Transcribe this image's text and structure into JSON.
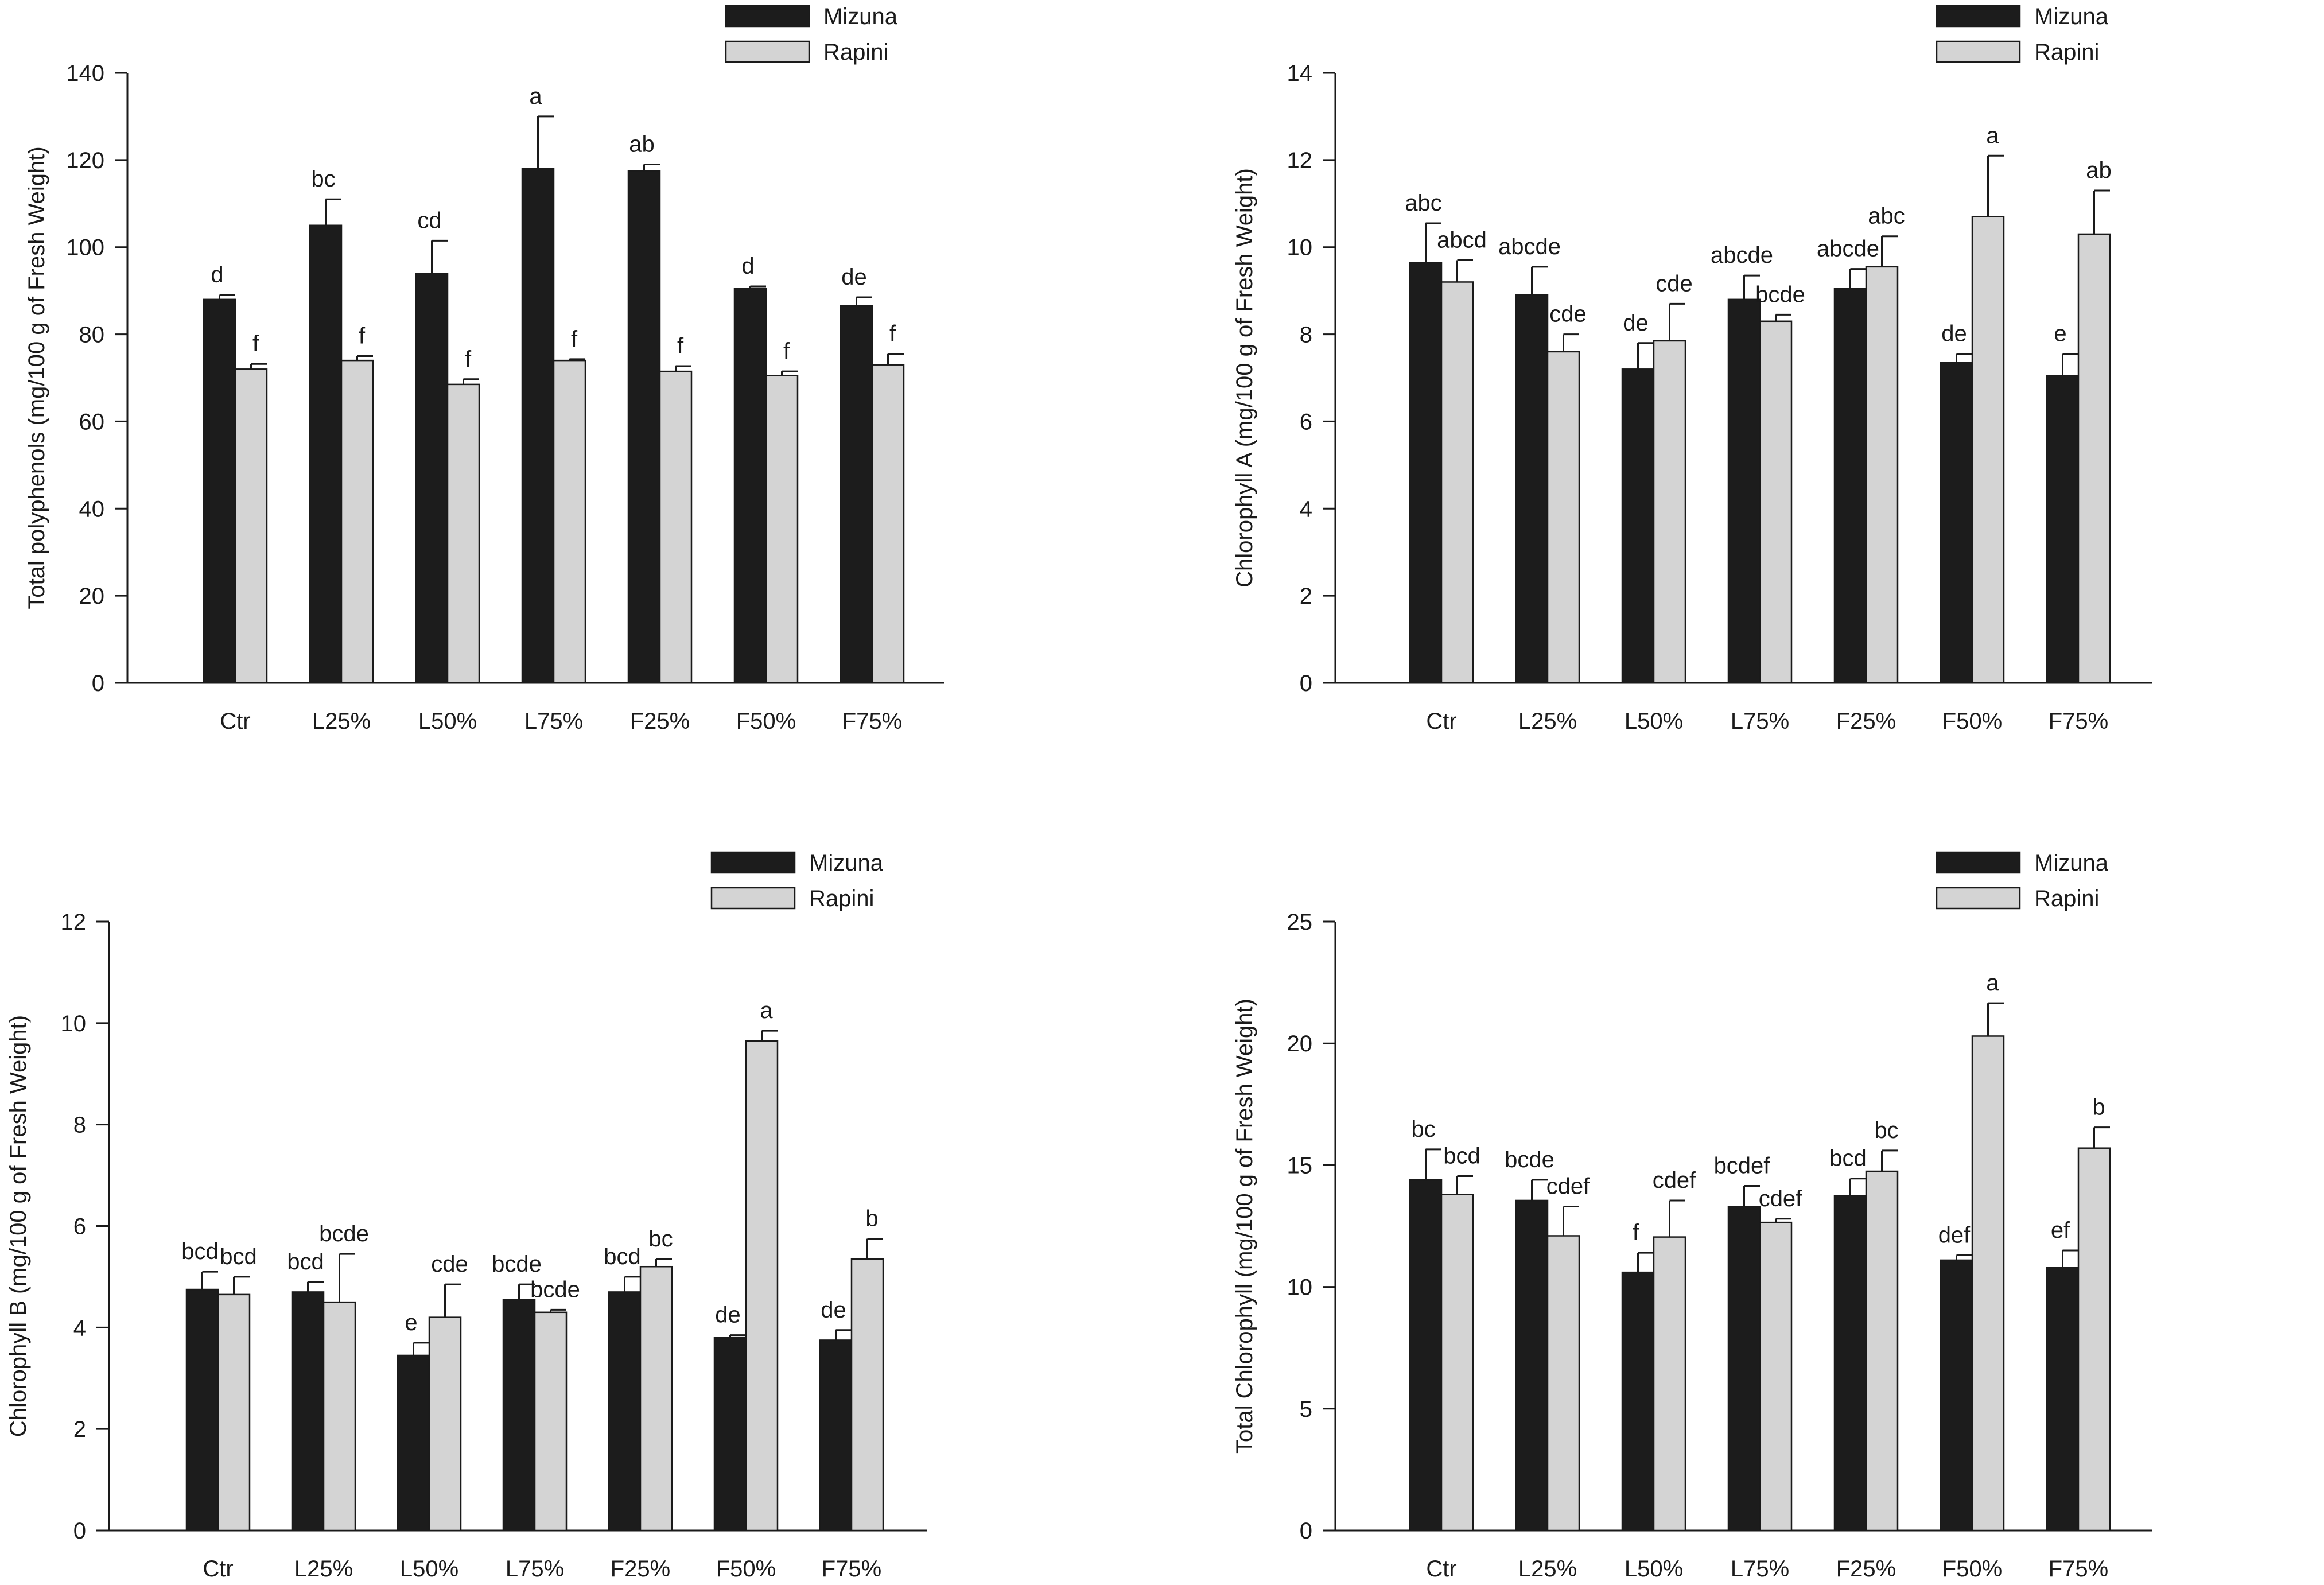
{
  "colors": {
    "mizuna": "#1c1c1c",
    "rapini": "#d4d4d4",
    "axis": "#1a1a1a"
  },
  "chart_data": [
    {
      "type": "bar",
      "ylabel": "Total polyphenols (mg/100 g of Fresh Weight)",
      "ylim": [
        0,
        140
      ],
      "yticks": [
        0,
        20,
        40,
        60,
        80,
        100,
        120,
        140
      ],
      "categories": [
        "Ctr",
        "L25%",
        "L50%",
        "L75%",
        "F25%",
        "F50%",
        "F75%"
      ],
      "legend": [
        "Mizuna",
        "Rapini"
      ],
      "series": [
        {
          "name": "Mizuna",
          "values": [
            88,
            105,
            94,
            118,
            117.5,
            90.5,
            86.5
          ],
          "errors": [
            1,
            6,
            7.5,
            12,
            1.5,
            0.5,
            2
          ],
          "labels": [
            "d",
            "bc",
            "cd",
            "a",
            "ab",
            "d",
            "de"
          ]
        },
        {
          "name": "Rapini",
          "values": [
            72,
            74,
            68.5,
            74,
            71.5,
            70.5,
            73
          ],
          "errors": [
            1.2,
            1,
            1.2,
            0.3,
            1.2,
            1,
            2.5
          ],
          "labels": [
            "f",
            "f",
            "f",
            "f",
            "f",
            "f",
            "f"
          ]
        }
      ]
    },
    {
      "type": "bar",
      "ylabel": "Chlorophyll A (mg/100 g of Fresh Weight)",
      "ylim": [
        0,
        14
      ],
      "yticks": [
        0,
        2,
        4,
        6,
        8,
        10,
        12,
        14
      ],
      "categories": [
        "Ctr",
        "L25%",
        "L50%",
        "L75%",
        "F25%",
        "F50%",
        "F75%"
      ],
      "legend": [
        "Mizuna",
        "Rapini"
      ],
      "series": [
        {
          "name": "Mizuna",
          "values": [
            9.65,
            8.9,
            7.2,
            8.8,
            9.05,
            7.35,
            7.05
          ],
          "errors": [
            0.9,
            0.65,
            0.6,
            0.55,
            0.45,
            0.2,
            0.5
          ],
          "labels": [
            "abc",
            "abcde",
            "de",
            "abcde",
            "abcde",
            "de",
            "e"
          ]
        },
        {
          "name": "Rapini",
          "values": [
            9.2,
            7.6,
            7.85,
            8.3,
            9.55,
            10.7,
            10.3
          ],
          "errors": [
            0.5,
            0.4,
            0.85,
            0.15,
            0.7,
            1.4,
            1.0
          ],
          "labels": [
            "abcd",
            "cde",
            "cde",
            "bcde",
            "abc",
            "a",
            "ab"
          ]
        }
      ]
    },
    {
      "type": "bar",
      "ylabel": "Chlorophyll B (mg/100 g of Fresh Weight)",
      "ylim": [
        0,
        12
      ],
      "yticks": [
        0,
        2,
        4,
        6,
        8,
        10,
        12
      ],
      "categories": [
        "Ctr",
        "L25%",
        "L50%",
        "L75%",
        "F25%",
        "F50%",
        "F75%"
      ],
      "legend": [
        "Mizuna",
        "Rapini"
      ],
      "series": [
        {
          "name": "Mizuna",
          "values": [
            4.75,
            4.7,
            3.45,
            4.55,
            4.7,
            3.8,
            3.75
          ],
          "errors": [
            0.35,
            0.2,
            0.25,
            0.3,
            0.3,
            0.05,
            0.2
          ],
          "labels": [
            "bcd",
            "bcd",
            "e",
            "bcde",
            "bcd",
            "de",
            "de"
          ]
        },
        {
          "name": "Rapini",
          "values": [
            4.65,
            4.5,
            4.2,
            4.3,
            5.2,
            9.65,
            5.35
          ],
          "errors": [
            0.35,
            0.95,
            0.65,
            0.05,
            0.15,
            0.2,
            0.4
          ],
          "labels": [
            "bcd",
            "bcde",
            "cde",
            "bcde",
            "bc",
            "a",
            "b"
          ]
        }
      ]
    },
    {
      "type": "bar",
      "ylabel": "Total Chlorophyll (mg/100 g of Fresh Weight)",
      "ylim": [
        0,
        25
      ],
      "yticks": [
        0,
        5,
        10,
        15,
        20,
        25
      ],
      "categories": [
        "Ctr",
        "L25%",
        "L50%",
        "L75%",
        "F25%",
        "F50%",
        "F75%"
      ],
      "legend": [
        "Mizuna",
        "Rapini"
      ],
      "series": [
        {
          "name": "Mizuna",
          "values": [
            14.4,
            13.55,
            10.6,
            13.3,
            13.75,
            11.1,
            10.8
          ],
          "errors": [
            1.25,
            0.85,
            0.8,
            0.85,
            0.7,
            0.2,
            0.7
          ],
          "labels": [
            "bc",
            "bcde",
            "f",
            "bcdef",
            "bcd",
            "def",
            "ef"
          ]
        },
        {
          "name": "Rapini",
          "values": [
            13.8,
            12.1,
            12.05,
            12.65,
            14.75,
            20.3,
            15.7
          ],
          "errors": [
            0.75,
            1.2,
            1.5,
            0.15,
            0.85,
            1.35,
            0.85
          ],
          "labels": [
            "bcd",
            "cdef",
            "cdef",
            "cdef",
            "bc",
            "a",
            "b"
          ]
        }
      ]
    }
  ]
}
